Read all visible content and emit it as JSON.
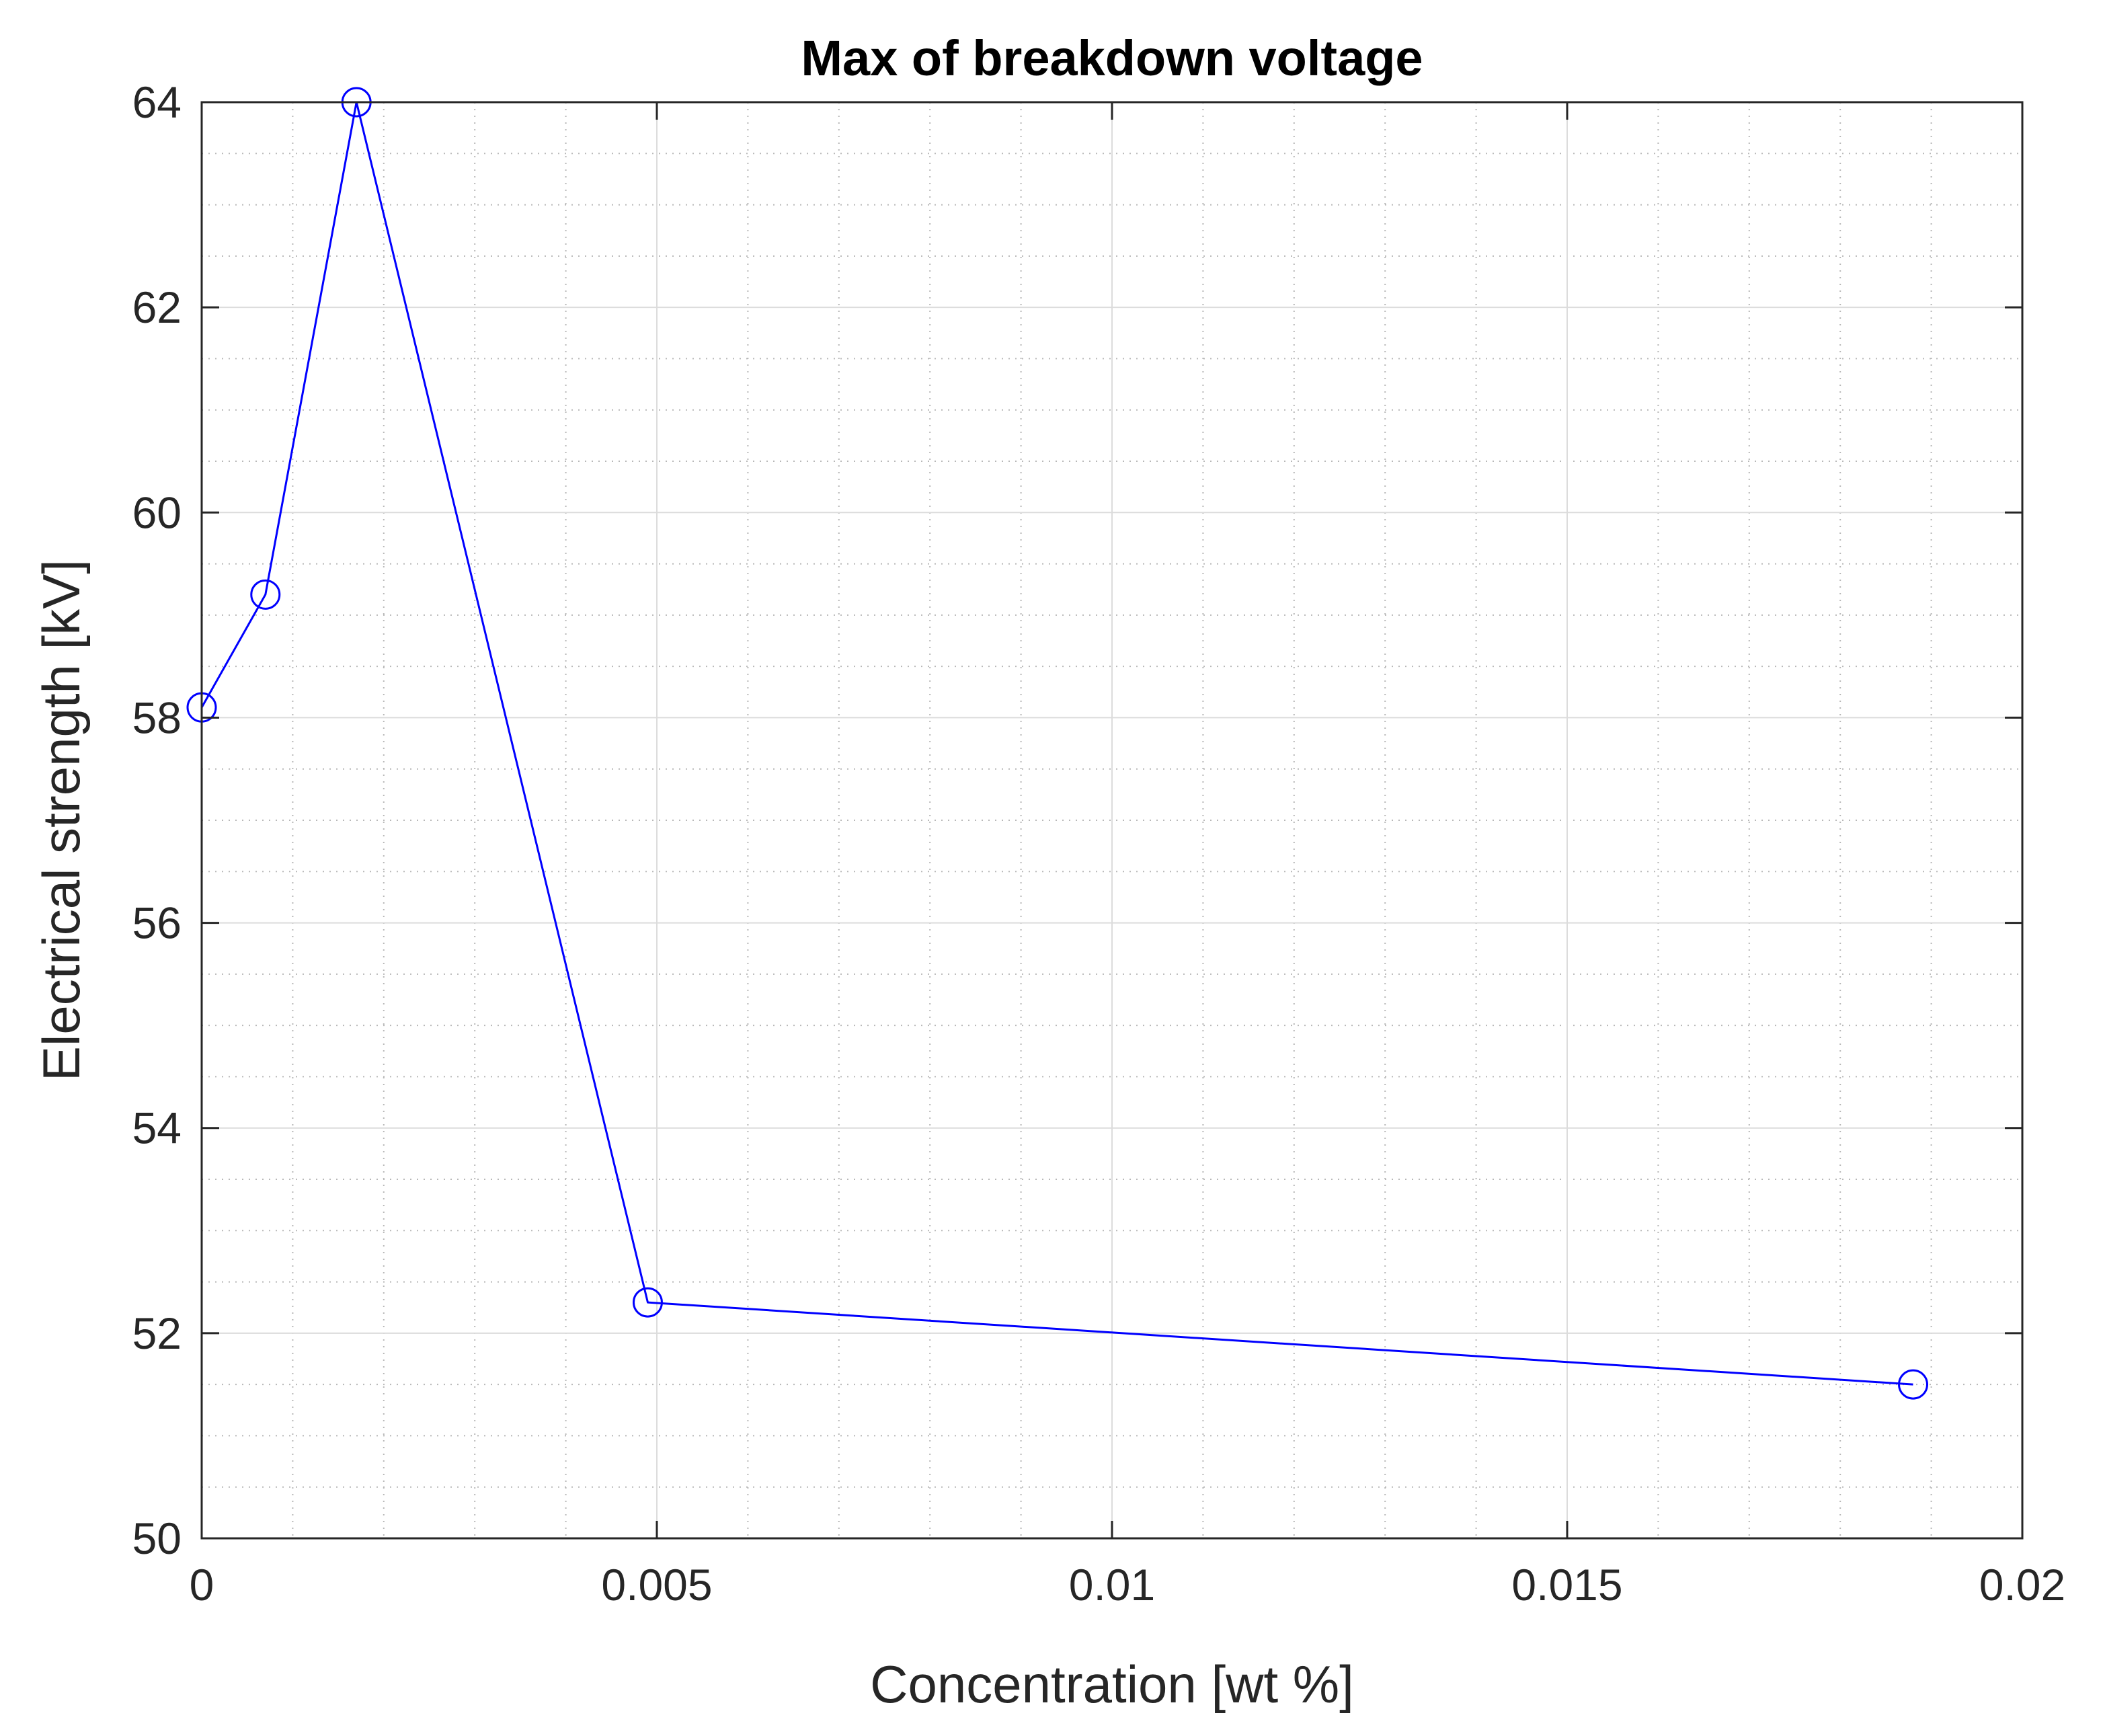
{
  "chart_data": {
    "type": "line",
    "title": "Max of breakdown voltage",
    "xlabel": "Concentration [wt %]",
    "ylabel": "Electrical strength [kV]",
    "xlim": [
      0,
      0.02
    ],
    "ylim": [
      50,
      64
    ],
    "xticks": [
      0,
      0.005,
      0.01,
      0.015,
      0.02
    ],
    "xtick_labels": [
      "0",
      "0.005",
      "0.01",
      "0.015",
      "0.02"
    ],
    "yticks": [
      50,
      52,
      54,
      56,
      58,
      60,
      62,
      64
    ],
    "ytick_labels": [
      "50",
      "52",
      "54",
      "56",
      "58",
      "60",
      "62",
      "64"
    ],
    "grid": "major and minor",
    "legend": "none",
    "series": [
      {
        "color": "#0000ff",
        "marker": "circle",
        "x": [
          0,
          0.0007,
          0.0017,
          0.0049,
          0.0188
        ],
        "y": [
          58.1,
          59.2,
          64.0,
          52.3,
          51.5
        ]
      }
    ]
  }
}
